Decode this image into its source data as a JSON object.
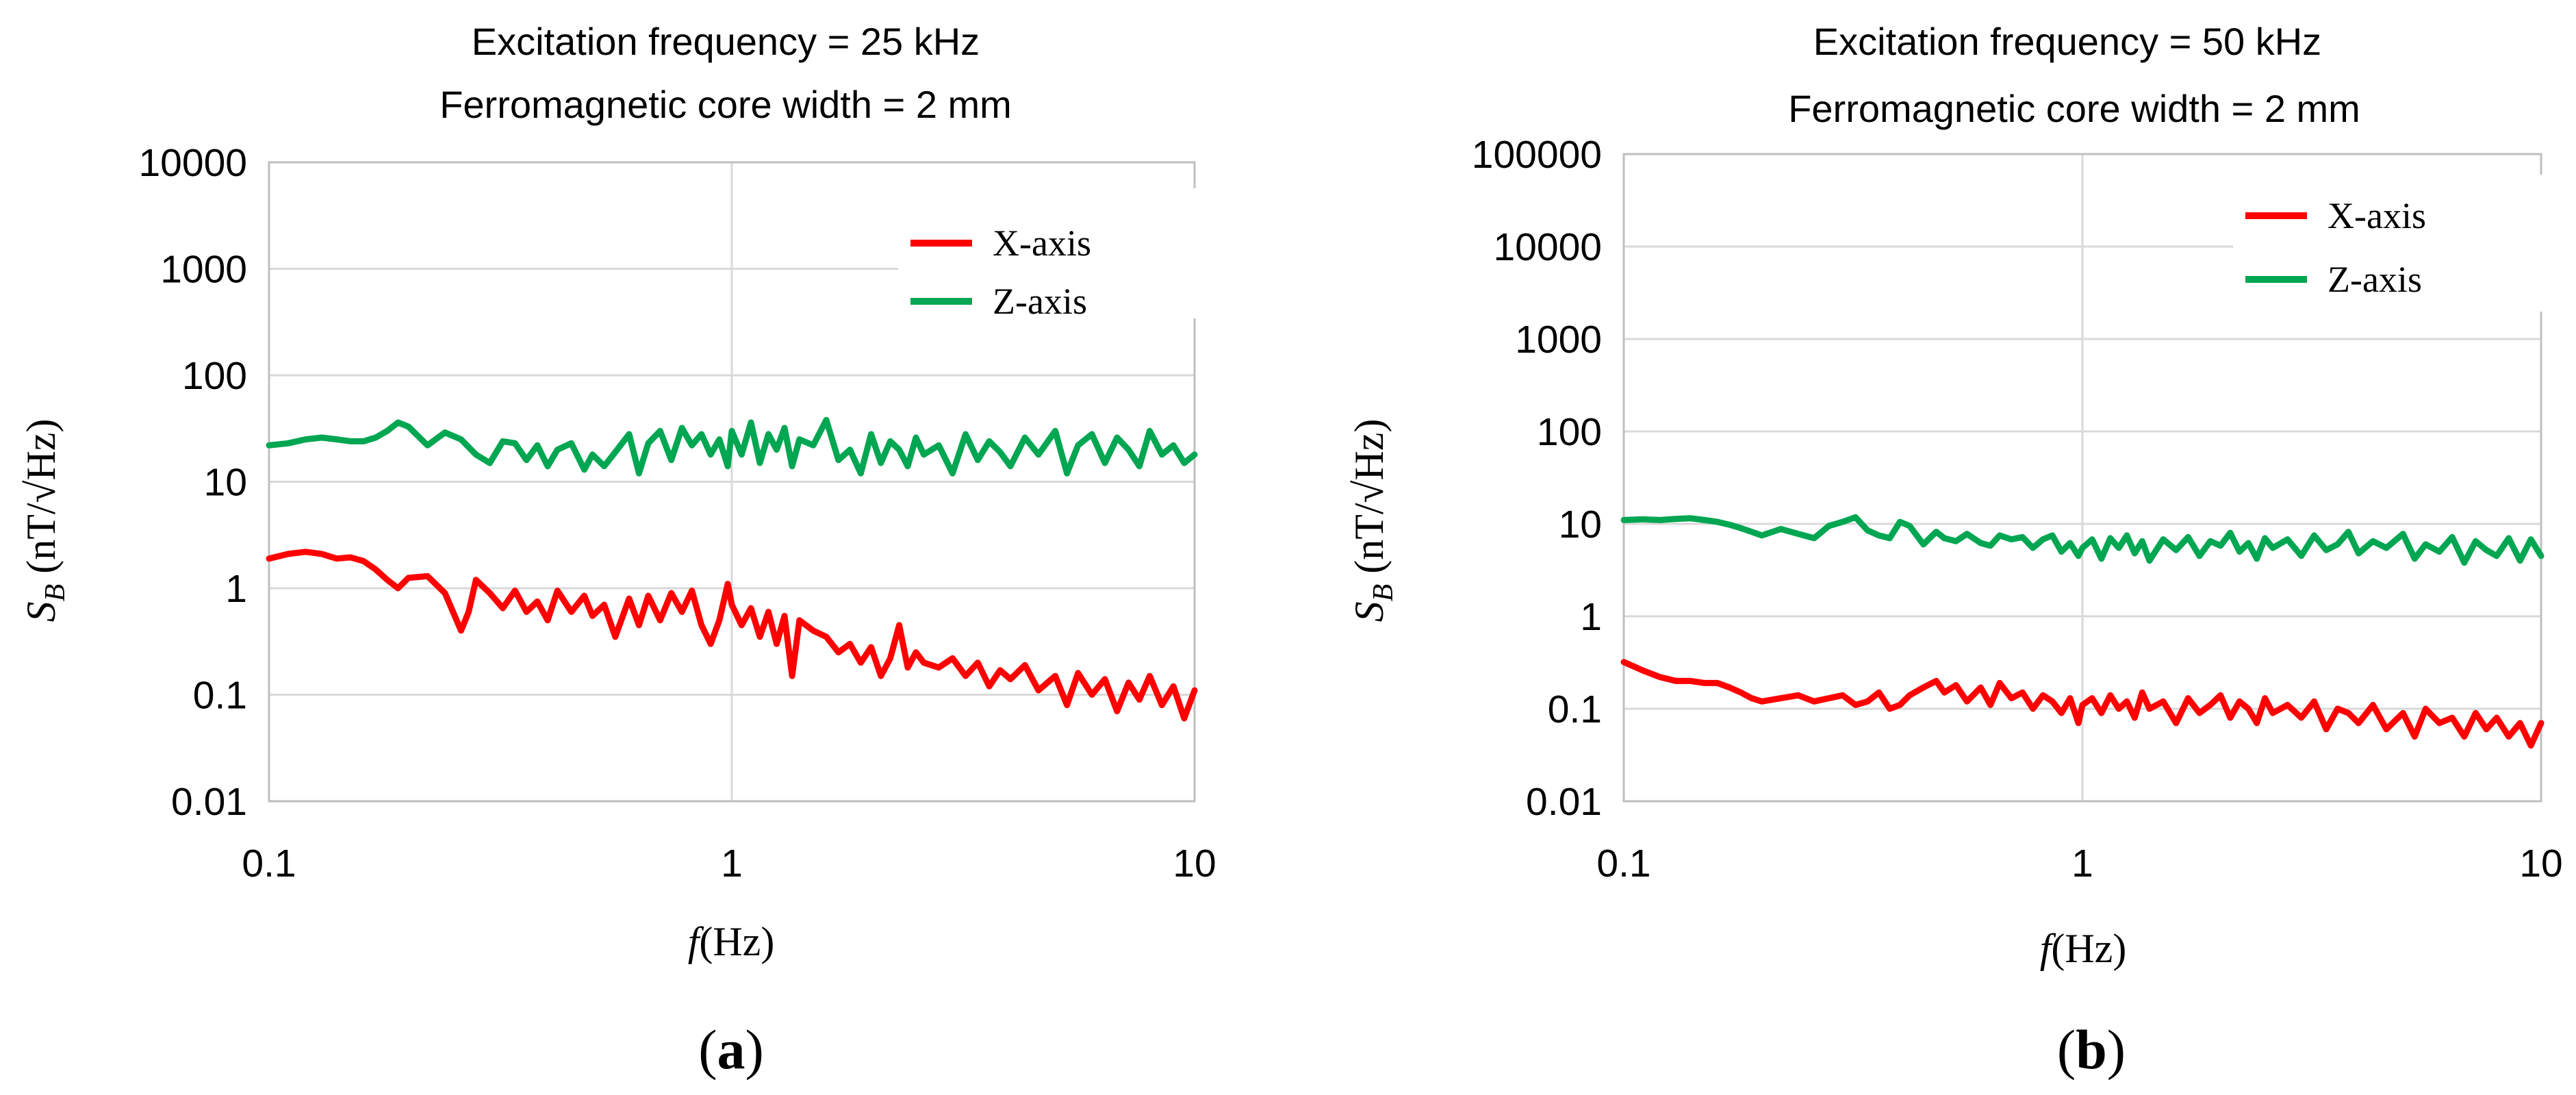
{
  "chart_data": [
    {
      "type": "line",
      "panel": "a",
      "title_lines": [
        "Excitation frequency = 25 kHz",
        "Ferromagnetic core width = 2 mm"
      ],
      "caption": {
        "open": "(",
        "letter": "a",
        "close": ")"
      },
      "xlabel": {
        "italic": "f",
        "rest": "(Hz)"
      },
      "ylabel": {
        "italic": "S",
        "subscript": "B",
        "rest": " (nT/√Hz)"
      },
      "x_scale": "log",
      "y_scale": "log",
      "xlim": [
        0.1,
        10
      ],
      "ylim": [
        0.01,
        10000
      ],
      "x_ticks": [
        0.1,
        1,
        10
      ],
      "x_tick_labels": [
        "0.1",
        "1",
        "10"
      ],
      "y_ticks": [
        0.01,
        0.1,
        1,
        10,
        100,
        1000,
        10000
      ],
      "y_tick_labels": [
        "0.01",
        "0.1",
        "1",
        "10",
        "100",
        "1000",
        "10000"
      ],
      "grid": "major",
      "legend_position": "top-right",
      "series": [
        {
          "name": "X-axis",
          "color": "#ff0000",
          "x": [
            0.1,
            0.11,
            0.12,
            0.13,
            0.14,
            0.15,
            0.16,
            0.17,
            0.18,
            0.19,
            0.2,
            0.22,
            0.24,
            0.26,
            0.27,
            0.28,
            0.3,
            0.32,
            0.34,
            0.36,
            0.38,
            0.4,
            0.42,
            0.45,
            0.48,
            0.5,
            0.53,
            0.56,
            0.6,
            0.63,
            0.66,
            0.7,
            0.74,
            0.78,
            0.82,
            0.86,
            0.9,
            0.94,
            0.98,
            1.0,
            1.05,
            1.1,
            1.15,
            1.2,
            1.25,
            1.3,
            1.35,
            1.4,
            1.5,
            1.6,
            1.7,
            1.8,
            1.9,
            2.0,
            2.1,
            2.2,
            2.3,
            2.4,
            2.5,
            2.6,
            2.8,
            3.0,
            3.2,
            3.4,
            3.6,
            3.8,
            4.0,
            4.3,
            4.6,
            5.0,
            5.3,
            5.6,
            6.0,
            6.4,
            6.8,
            7.2,
            7.6,
            8.0,
            8.5,
            9.0,
            9.5,
            10.0
          ],
          "y": [
            1.9,
            2.1,
            2.2,
            2.1,
            1.9,
            1.95,
            1.8,
            1.5,
            1.2,
            1.0,
            1.25,
            1.3,
            0.9,
            0.4,
            0.6,
            1.2,
            0.9,
            0.65,
            0.95,
            0.6,
            0.75,
            0.5,
            0.95,
            0.6,
            0.85,
            0.55,
            0.7,
            0.35,
            0.8,
            0.45,
            0.85,
            0.5,
            0.9,
            0.6,
            0.95,
            0.45,
            0.3,
            0.5,
            1.1,
            0.7,
            0.45,
            0.65,
            0.35,
            0.6,
            0.3,
            0.55,
            0.15,
            0.5,
            0.4,
            0.35,
            0.25,
            0.3,
            0.2,
            0.28,
            0.15,
            0.22,
            0.45,
            0.18,
            0.25,
            0.2,
            0.18,
            0.22,
            0.15,
            0.2,
            0.12,
            0.17,
            0.14,
            0.19,
            0.11,
            0.15,
            0.08,
            0.16,
            0.1,
            0.14,
            0.07,
            0.13,
            0.09,
            0.15,
            0.08,
            0.12,
            0.06,
            0.11
          ]
        },
        {
          "name": "Z-axis",
          "color": "#00a651",
          "x": [
            0.1,
            0.11,
            0.12,
            0.13,
            0.14,
            0.15,
            0.16,
            0.17,
            0.18,
            0.19,
            0.2,
            0.22,
            0.24,
            0.26,
            0.28,
            0.3,
            0.32,
            0.34,
            0.36,
            0.38,
            0.4,
            0.42,
            0.45,
            0.48,
            0.5,
            0.53,
            0.56,
            0.6,
            0.63,
            0.66,
            0.7,
            0.74,
            0.78,
            0.82,
            0.86,
            0.9,
            0.94,
            0.98,
            1.0,
            1.05,
            1.1,
            1.15,
            1.2,
            1.25,
            1.3,
            1.35,
            1.4,
            1.5,
            1.6,
            1.7,
            1.8,
            1.9,
            2.0,
            2.1,
            2.2,
            2.3,
            2.4,
            2.5,
            2.6,
            2.8,
            3.0,
            3.2,
            3.4,
            3.6,
            3.8,
            4.0,
            4.3,
            4.6,
            5.0,
            5.3,
            5.6,
            6.0,
            6.4,
            6.8,
            7.2,
            7.6,
            8.0,
            8.5,
            9.0,
            9.5,
            10.0
          ],
          "y": [
            22,
            23,
            25,
            26,
            25,
            24,
            24,
            26,
            30,
            36,
            33,
            22,
            29,
            25,
            18,
            15,
            24,
            23,
            16,
            22,
            14,
            20,
            23,
            13,
            18,
            14,
            19,
            28,
            12,
            23,
            30,
            16,
            32,
            22,
            28,
            18,
            25,
            14,
            30,
            18,
            36,
            15,
            28,
            20,
            32,
            14,
            25,
            22,
            38,
            16,
            20,
            12,
            28,
            15,
            24,
            20,
            14,
            26,
            18,
            22,
            12,
            28,
            16,
            24,
            19,
            14,
            26,
            18,
            30,
            12,
            22,
            28,
            15,
            26,
            20,
            14,
            30,
            18,
            22,
            15,
            18
          ]
        }
      ]
    },
    {
      "type": "line",
      "panel": "b",
      "title_lines": [
        "Excitation frequency = 50 kHz",
        "Ferromagnetic core width = 2 mm"
      ],
      "caption": {
        "open": "(",
        "letter": "b",
        "close": ")"
      },
      "xlabel": {
        "italic": "f",
        "rest": "(Hz)"
      },
      "ylabel": {
        "italic": "S",
        "subscript": "B",
        "rest": " (nT/√Hz)"
      },
      "x_scale": "log",
      "y_scale": "log",
      "xlim": [
        0.1,
        10
      ],
      "ylim": [
        0.01,
        100000
      ],
      "x_ticks": [
        0.1,
        1,
        10
      ],
      "x_tick_labels": [
        "0.1",
        "1",
        "10"
      ],
      "y_ticks": [
        0.01,
        0.1,
        1,
        10,
        100,
        1000,
        10000,
        100000
      ],
      "y_tick_labels": [
        "0.01",
        "0.1",
        "1",
        "10",
        "100",
        "1000",
        "10000",
        "100000"
      ],
      "grid": "major",
      "legend_position": "top-right",
      "series": [
        {
          "name": "X-axis",
          "color": "#ff0000",
          "x": [
            0.1,
            0.11,
            0.12,
            0.13,
            0.14,
            0.15,
            0.16,
            0.17,
            0.18,
            0.19,
            0.2,
            0.22,
            0.24,
            0.26,
            0.28,
            0.3,
            0.32,
            0.34,
            0.36,
            0.38,
            0.4,
            0.42,
            0.45,
            0.48,
            0.5,
            0.53,
            0.56,
            0.6,
            0.63,
            0.66,
            0.7,
            0.74,
            0.78,
            0.82,
            0.86,
            0.9,
            0.94,
            0.98,
            1.0,
            1.05,
            1.1,
            1.15,
            1.2,
            1.25,
            1.3,
            1.35,
            1.4,
            1.5,
            1.6,
            1.7,
            1.8,
            1.9,
            2.0,
            2.1,
            2.2,
            2.3,
            2.4,
            2.5,
            2.6,
            2.8,
            3.0,
            3.2,
            3.4,
            3.6,
            3.8,
            4.0,
            4.3,
            4.6,
            5.0,
            5.3,
            5.6,
            6.0,
            6.4,
            6.8,
            7.2,
            7.6,
            8.0,
            8.5,
            9.0,
            9.5,
            10.0
          ],
          "y": [
            0.32,
            0.26,
            0.22,
            0.2,
            0.2,
            0.19,
            0.19,
            0.17,
            0.15,
            0.13,
            0.12,
            0.13,
            0.14,
            0.12,
            0.13,
            0.14,
            0.11,
            0.12,
            0.15,
            0.1,
            0.11,
            0.14,
            0.17,
            0.2,
            0.15,
            0.18,
            0.12,
            0.17,
            0.11,
            0.19,
            0.13,
            0.15,
            0.1,
            0.14,
            0.12,
            0.09,
            0.13,
            0.07,
            0.11,
            0.13,
            0.09,
            0.14,
            0.1,
            0.12,
            0.08,
            0.15,
            0.1,
            0.12,
            0.07,
            0.13,
            0.09,
            0.11,
            0.14,
            0.08,
            0.12,
            0.1,
            0.07,
            0.13,
            0.09,
            0.11,
            0.08,
            0.12,
            0.06,
            0.1,
            0.09,
            0.07,
            0.11,
            0.06,
            0.09,
            0.05,
            0.1,
            0.07,
            0.08,
            0.05,
            0.09,
            0.06,
            0.08,
            0.05,
            0.07,
            0.04,
            0.07
          ]
        },
        {
          "name": "Z-axis",
          "color": "#00a651",
          "x": [
            0.1,
            0.11,
            0.12,
            0.13,
            0.14,
            0.15,
            0.16,
            0.17,
            0.18,
            0.19,
            0.2,
            0.22,
            0.24,
            0.26,
            0.28,
            0.3,
            0.32,
            0.34,
            0.36,
            0.38,
            0.4,
            0.42,
            0.45,
            0.48,
            0.5,
            0.53,
            0.56,
            0.6,
            0.63,
            0.66,
            0.7,
            0.74,
            0.78,
            0.82,
            0.86,
            0.9,
            0.94,
            0.98,
            1.0,
            1.05,
            1.1,
            1.15,
            1.2,
            1.25,
            1.3,
            1.35,
            1.4,
            1.5,
            1.6,
            1.7,
            1.8,
            1.9,
            2.0,
            2.1,
            2.2,
            2.3,
            2.4,
            2.5,
            2.6,
            2.8,
            3.0,
            3.2,
            3.4,
            3.6,
            3.8,
            4.0,
            4.3,
            4.6,
            5.0,
            5.3,
            5.6,
            6.0,
            6.4,
            6.8,
            7.2,
            7.6,
            8.0,
            8.5,
            9.0,
            9.5,
            10.0
          ],
          "y": [
            11,
            11.2,
            11.0,
            11.3,
            11.5,
            11.0,
            10.5,
            9.8,
            9.0,
            8.2,
            7.5,
            8.8,
            7.8,
            7.0,
            9.5,
            10.5,
            11.8,
            8.5,
            7.5,
            7.0,
            10.5,
            9.5,
            6.0,
            8.2,
            7.0,
            6.5,
            7.8,
            6.2,
            5.8,
            7.5,
            6.8,
            7.2,
            5.5,
            6.8,
            7.5,
            5.0,
            6.2,
            4.5,
            5.5,
            6.8,
            4.2,
            7.0,
            5.5,
            7.5,
            4.8,
            6.5,
            4.0,
            6.8,
            5.2,
            7.2,
            4.5,
            6.5,
            5.8,
            8.0,
            5.0,
            6.2,
            4.2,
            7.0,
            5.5,
            6.8,
            4.5,
            7.5,
            5.2,
            6.0,
            8.2,
            4.8,
            6.5,
            5.5,
            7.8,
            4.2,
            6.0,
            5.0,
            7.2,
            3.8,
            6.5,
            5.2,
            4.5,
            7.0,
            4.0,
            6.8,
            4.5
          ]
        }
      ]
    }
  ],
  "colors": {
    "grid": "#d9d9d9",
    "axis": "#bfbfbf",
    "x_axis_series": "#ff0000",
    "z_axis_series": "#00a651"
  }
}
